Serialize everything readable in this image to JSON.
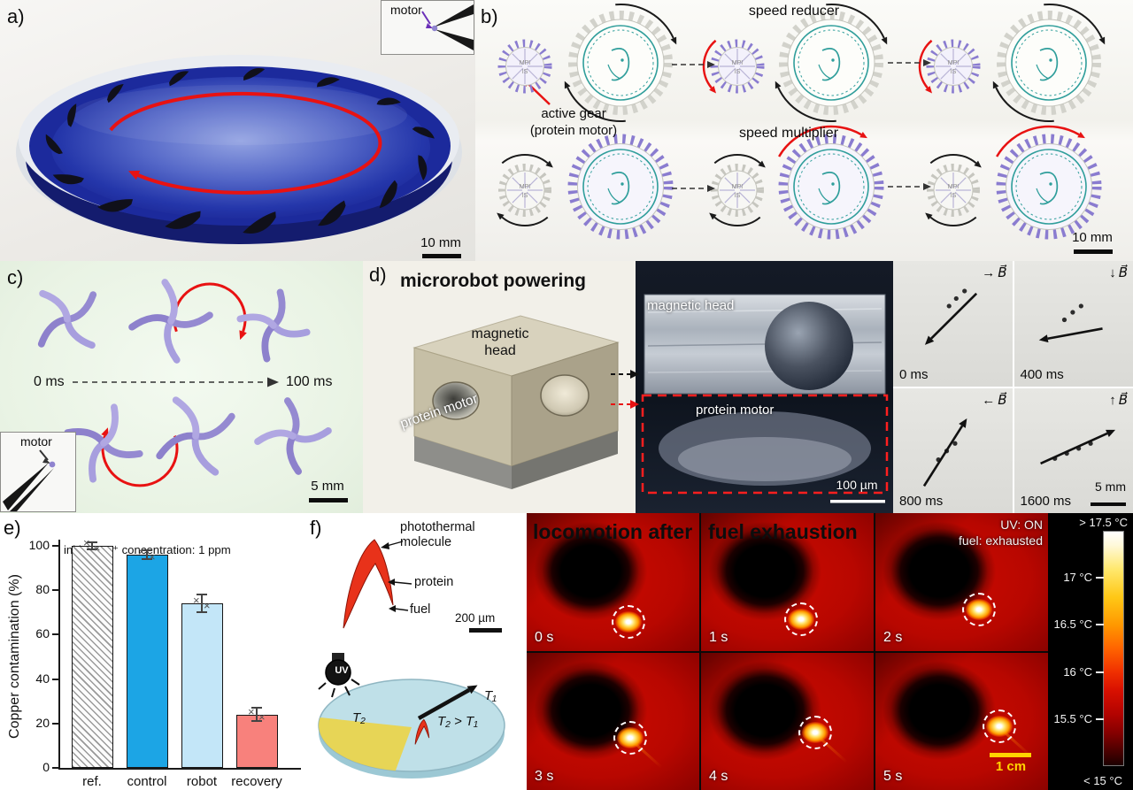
{
  "figure": {
    "a": {
      "label": "a)",
      "inset_label": "motor",
      "scale": "10 mm"
    },
    "b": {
      "label": "b)",
      "caption_top": "speed reducer",
      "active_line1": "active gear",
      "active_line2": "(protein motor)",
      "caption_bottom": "speed multiplier",
      "gear_mpi": "MPI",
      "gear_is": "IS",
      "scale": "10 mm"
    },
    "c": {
      "label": "c)",
      "t0": "0 ms",
      "t1": "100 ms",
      "inset_label": "motor",
      "scale": "5 mm"
    },
    "d": {
      "label": "d)",
      "title": "microrobot powering",
      "box_top_label": "magnetic\nhead",
      "box_side_label": "protein motor",
      "photo_top_label": "magnetic head",
      "photo_bottom_label": "protein motor",
      "photo_scale": "100 µm",
      "b_field": "B⃗",
      "frames": [
        {
          "time": "0 ms",
          "dir": "→"
        },
        {
          "time": "400 ms",
          "dir": "↓"
        },
        {
          "time": "800 ms",
          "dir": "←"
        },
        {
          "time": "1600 ms",
          "dir": "↑"
        }
      ],
      "frames_scale": "5 mm"
    },
    "e": {
      "label": "e)"
    },
    "f": {
      "label": "f)",
      "mol_label": "photothermal\nmolecule",
      "protein_label": "protein",
      "fuel_label": "fuel",
      "scale_small": "200 µm",
      "uv": "UV",
      "t1": "T₁",
      "t2": "T₂",
      "relation": "T₂ > T₁",
      "thermal_title_1": "locomotion after",
      "thermal_title_2": "fuel exhaustion",
      "status": "UV: ON\nfuel: exhausted",
      "times": [
        "0 s",
        "1 s",
        "2 s",
        "3 s",
        "4 s",
        "5 s"
      ],
      "scale": "1 cm",
      "colorbar": {
        "top": "> 17.5 °C",
        "ticks": [
          "17 °C",
          "16.5 °C",
          "16 °C",
          "15.5 °C"
        ],
        "bottom": "< 15 °C"
      }
    }
  },
  "chart_data": {
    "type": "bar",
    "categories": [
      "ref.",
      "control",
      "robot",
      "recovery"
    ],
    "values": [
      100,
      96,
      74,
      24
    ],
    "errors": [
      1.5,
      2,
      4,
      3
    ],
    "bar_colors": [
      "hatch",
      "#1ca5e5",
      "#c3e6f8",
      "#f8817c"
    ],
    "annotation": "initial Cu²⁺ concentration: 1 ppm",
    "ylabel": "Copper contamination (%)",
    "ylim": [
      0,
      100
    ],
    "yticks": [
      0,
      20,
      40,
      60,
      80,
      100
    ],
    "legend": null,
    "grid": false
  }
}
